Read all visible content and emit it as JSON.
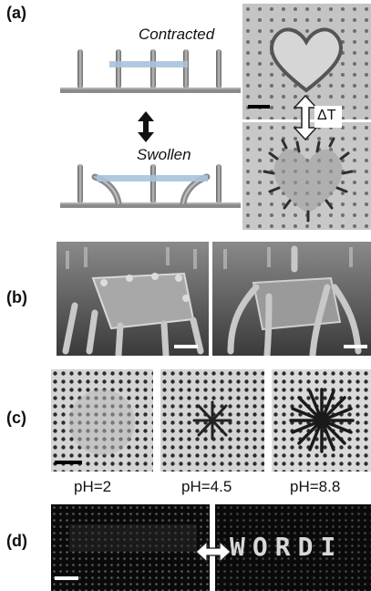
{
  "panels": {
    "a": {
      "label": "(a)",
      "contracted": "Contracted",
      "swollen": "Swollen",
      "delta_t": "ΔT"
    },
    "b": {
      "label": "(b)"
    },
    "c": {
      "label": "(c)",
      "ph_values": [
        "pH=2",
        "pH=4.5",
        "pH=8.8"
      ]
    },
    "d": {
      "label": "(d)",
      "word_text": "WORDI"
    }
  },
  "colors": {
    "gray_post": "#808080",
    "hydrogel": "#a9c3dc",
    "sem_bg": "#6a6a6a",
    "optical_bg": "#c8c8c8",
    "dark_bg": "#0a0a0a"
  }
}
